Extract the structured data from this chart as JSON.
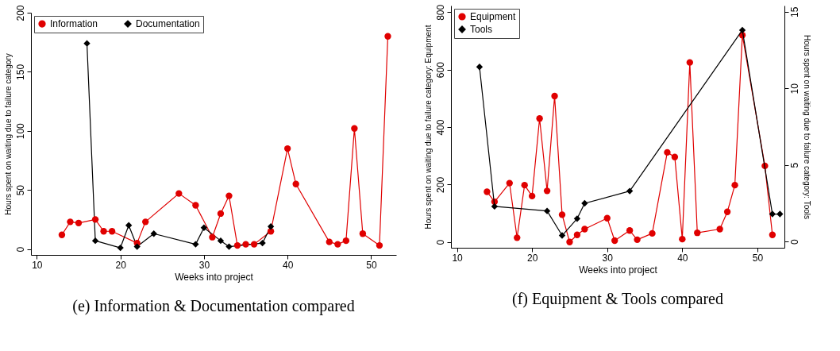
{
  "chart_data": [
    {
      "type": "line",
      "title": "(e) Information & Documentation compared",
      "xlabel": "Weeks into project",
      "ylabel": "Hours spent on waiting due to failure category",
      "xlim": [
        9.3,
        53
      ],
      "xticks": [
        10,
        20,
        30,
        40,
        50
      ],
      "ylim": [
        -5,
        200
      ],
      "yticks": [
        0,
        50,
        100,
        150,
        200
      ],
      "legend": "top left",
      "grid": false,
      "line_style": "solid",
      "series": [
        {
          "name": "Information",
          "color": "#e00000",
          "marker": "circle",
          "x": [
            13,
            14,
            15,
            17,
            18,
            19,
            22,
            23,
            27,
            29,
            31,
            32,
            33,
            34,
            35,
            36,
            38,
            40,
            41,
            45,
            46,
            47,
            48,
            49,
            51,
            52
          ],
          "values": [
            12,
            23,
            22,
            25,
            15,
            15,
            5,
            23,
            47,
            37,
            10,
            30,
            45,
            3,
            4,
            4,
            15,
            85,
            55,
            6,
            4,
            7,
            102,
            13,
            3,
            180
          ]
        },
        {
          "name": "Documentation",
          "color": "#000000",
          "marker": "diamond",
          "x": [
            16,
            17,
            20,
            21,
            22,
            24,
            29,
            30,
            32,
            33,
            37,
            38
          ],
          "values": [
            174,
            7,
            1,
            20,
            2,
            13,
            4,
            18,
            7,
            2,
            5,
            19
          ]
        }
      ]
    },
    {
      "type": "line",
      "title": "(f) Equipment & Tools compared",
      "xlabel": "Weeks into project",
      "ylabel": "Hours spent on waiting due to failure category: Equipment",
      "y2label": "Hours spent on waiting due to failure category: Tools",
      "xlim": [
        9.2,
        53.6
      ],
      "xticks": [
        10,
        20,
        30,
        40,
        50
      ],
      "ylim": [
        -20,
        823
      ],
      "yticks": [
        0,
        200,
        400,
        600,
        800
      ],
      "y2lim": [
        -0.4,
        15.4
      ],
      "y2ticks": [
        0,
        5,
        10,
        15
      ],
      "legend": "top left",
      "grid": false,
      "line_style": "solid",
      "series": [
        {
          "name": "Equipment",
          "color": "#e00000",
          "marker": "circle",
          "x": [
            14,
            15,
            17,
            18,
            19,
            20,
            21,
            22,
            23,
            24,
            25,
            26,
            27,
            30,
            31,
            33,
            34,
            36,
            38,
            39,
            40,
            41,
            42,
            45,
            46,
            47,
            48,
            51,
            52
          ],
          "values": [
            175,
            140,
            205,
            15,
            198,
            160,
            430,
            178,
            508,
            95,
            0,
            25,
            45,
            83,
            5,
            40,
            8,
            30,
            312,
            296,
            10,
            625,
            32,
            45,
            105,
            198,
            720,
            265,
            25
          ]
        },
        {
          "name": "Tools",
          "color": "#000000",
          "marker": "diamond",
          "axis": "y2",
          "x": [
            13,
            15,
            22,
            24,
            26,
            27,
            33,
            48,
            52,
            53
          ],
          "values": [
            11.4,
            2.3,
            2.0,
            0.4,
            1.5,
            2.5,
            3.3,
            13.8,
            1.8,
            1.8
          ]
        }
      ]
    }
  ]
}
